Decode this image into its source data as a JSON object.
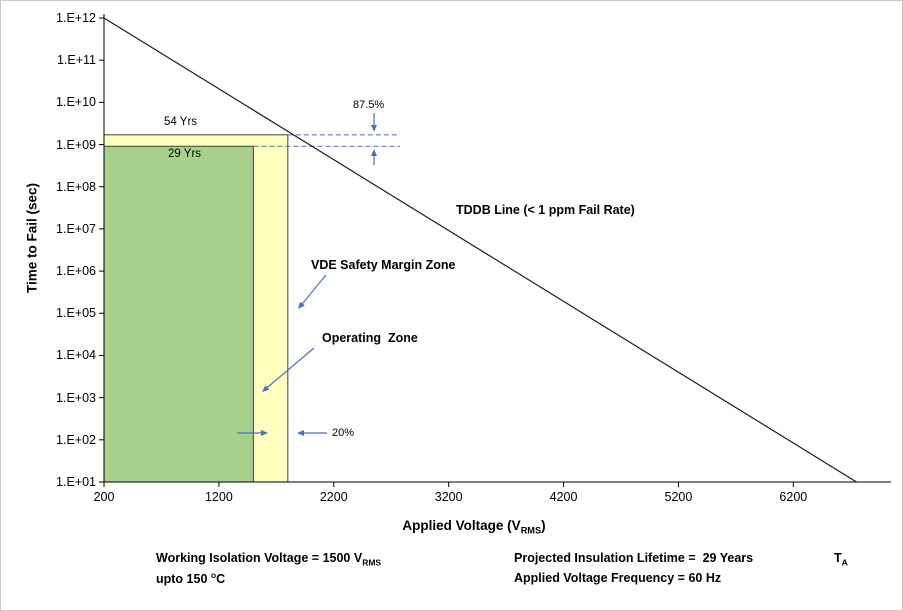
{
  "chart_data": {
    "type": "line",
    "title": "",
    "x_axis": {
      "title_main": "Applied Voltage (V",
      "title_sub": "RMS",
      "title_close": ")",
      "ticks": [
        200,
        1200,
        2200,
        3200,
        4200,
        5200,
        6200
      ]
    },
    "y_axis": {
      "title": "Time to Fail (sec)",
      "tick_labels": [
        "1.E+12",
        "1.E+11",
        "1.E+10",
        "1.E+09",
        "1.E+08",
        "1.E+07",
        "1.E+06",
        "1.E+05",
        "1.E+04",
        "1.E+03",
        "1.E+02",
        "1.E+01"
      ]
    },
    "xlim": [
      200,
      7050
    ],
    "ylim_exp": [
      1,
      12
    ],
    "grid": false,
    "tddb_line": {
      "label": "TDDB Line (< 1 ppm Fail Rate)",
      "points_v_sec": [
        [
          200,
          1000000000000.0
        ],
        [
          6750,
          10
        ]
      ],
      "color": "#1a1a1a"
    },
    "zones": [
      {
        "label": "54 Yrs",
        "x_range_v": [
          200,
          1800
        ],
        "top_sec": 1700000000.0,
        "fill": "#FFFFBE",
        "stroke": "#404040"
      },
      {
        "label": "29 Yrs",
        "x_range_v": [
          200,
          1500
        ],
        "top_sec": 910000000.0,
        "fill": "#A9D18E",
        "stroke": "#404040"
      }
    ],
    "annotations": {
      "margin_pct": "87.5%",
      "width_pct": "20%",
      "vde_label": "VDE Safety Margin Zone",
      "operating_label": "Operating  Zone"
    },
    "colors": {
      "annotation_blue": "#4472C4"
    }
  },
  "footer": {
    "line1_main": "Working Isolation Voltage = 1500 V",
    "line1_sub": "RMS",
    "line2_pre": "upto 150 ",
    "line2_sup": "o",
    "line2_post": "C",
    "right1": "Projected Insulation Lifetime =  29 Years",
    "right2": "Applied Voltage Frequency = 60 Hz",
    "ta_main": "T",
    "ta_sub": "A"
  }
}
